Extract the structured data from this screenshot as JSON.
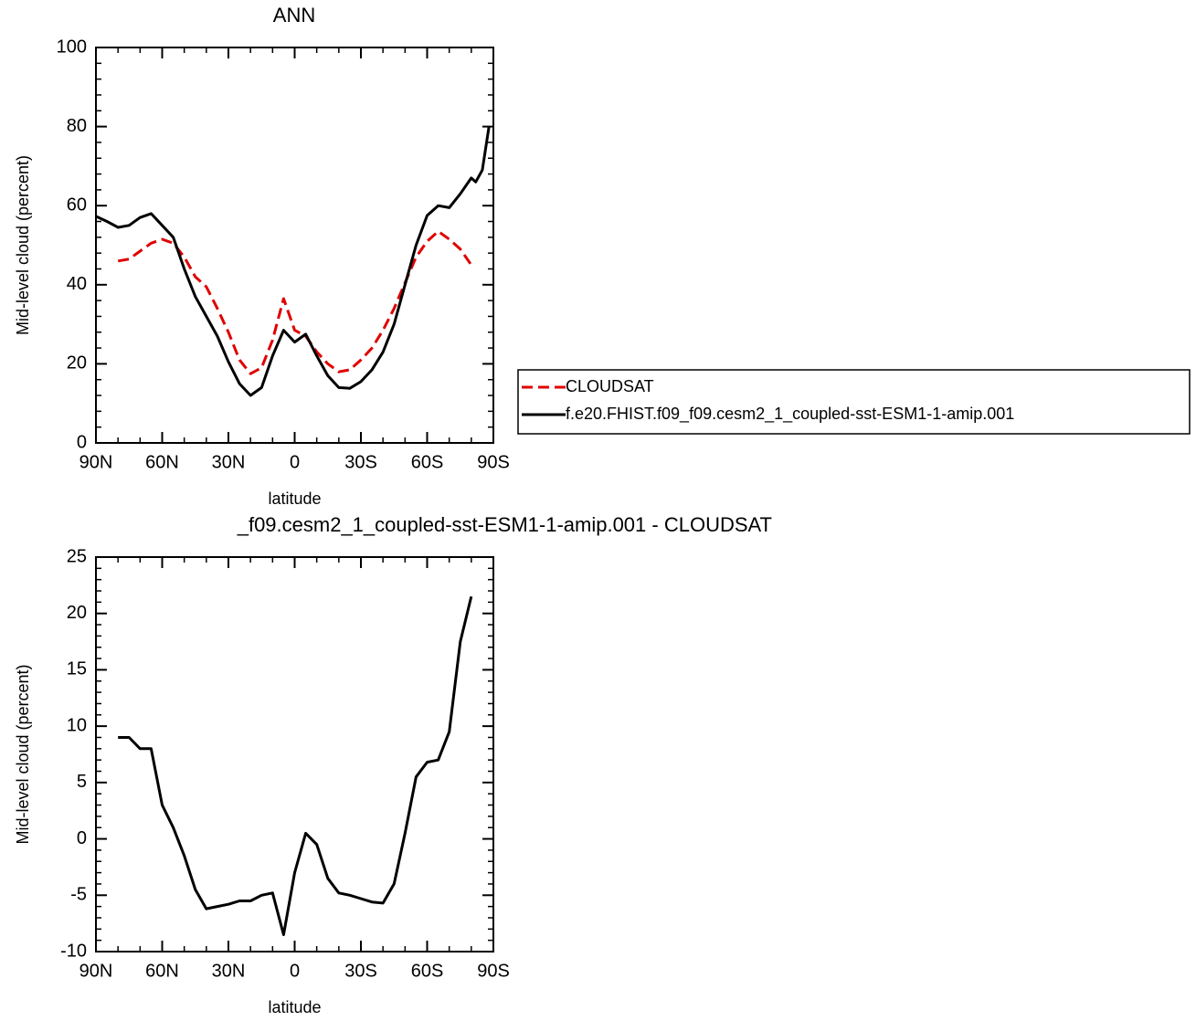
{
  "chart_data": [
    {
      "type": "line",
      "title": "ANN",
      "xlabel": "latitude",
      "ylabel": "Mid-level cloud (percent)",
      "x": [
        90,
        85,
        80,
        75,
        70,
        65,
        60,
        55,
        50,
        45,
        40,
        35,
        30,
        25,
        20,
        15,
        10,
        5,
        0,
        -5,
        -10,
        -15,
        -20,
        -25,
        -30,
        -35,
        -40,
        -45,
        -50,
        -55,
        -60,
        -65,
        -70,
        -75,
        -80,
        -82,
        -85,
        -88
      ],
      "series": [
        {
          "name": "CLOUDSAT",
          "color": "#e00000",
          "dashed": true,
          "values": [
            null,
            null,
            46,
            46.5,
            48.5,
            50.5,
            51.5,
            50.5,
            47,
            42,
            39.5,
            34,
            28,
            21,
            17.5,
            19,
            26,
            36.5,
            28.5,
            27,
            23,
            20,
            18,
            18.5,
            21,
            24,
            28.5,
            34,
            40.5,
            47,
            51,
            53.5,
            51.5,
            49,
            45,
            null,
            null,
            null
          ]
        },
        {
          "name": "f.e20.FHIST.f09_f09.cesm2_1_coupled-sst-ESM1-1-amip.001",
          "color": "#000000",
          "dashed": false,
          "values": [
            57.3,
            56,
            54.5,
            55,
            57,
            58,
            55,
            52,
            44,
            37,
            32,
            27,
            20.5,
            15,
            12,
            14,
            22,
            28.5,
            25.5,
            27.5,
            22,
            17,
            14,
            13.8,
            15.5,
            18.5,
            23,
            30,
            40,
            50,
            57.5,
            60,
            59.5,
            63,
            67,
            66,
            69,
            80
          ]
        }
      ],
      "xlim": [
        90,
        -90
      ],
      "ylim": [
        0,
        100
      ],
      "xticks": [
        {
          "value": 90,
          "label": "90N"
        },
        {
          "value": 60,
          "label": "60N"
        },
        {
          "value": 30,
          "label": "30N"
        },
        0,
        {
          "value": -30,
          "label": "30S"
        },
        {
          "value": -60,
          "label": "60S"
        },
        {
          "value": -90,
          "label": "90S"
        }
      ],
      "yticks": [
        0,
        20,
        40,
        60,
        80,
        100
      ],
      "legend": "right"
    },
    {
      "type": "line",
      "title": "_f09.cesm2_1_coupled-sst-ESM1-1-amip.001 - CLOUDSAT",
      "xlabel": "latitude",
      "ylabel": "Mid-level cloud (percent)",
      "x": [
        90,
        85,
        80,
        75,
        70,
        65,
        60,
        55,
        50,
        45,
        40,
        35,
        30,
        25,
        20,
        15,
        10,
        5,
        0,
        -5,
        -10,
        -15,
        -20,
        -25,
        -30,
        -35,
        -40,
        -45,
        -50,
        -55,
        -60,
        -65,
        -70,
        -75,
        -80,
        -82,
        -85,
        -88
      ],
      "color": "#000000",
      "values": [
        null,
        null,
        9,
        9,
        8,
        8,
        3,
        1,
        -1.5,
        -4.5,
        -6.2,
        -6,
        -5.8,
        -5.5,
        -5.5,
        -5,
        -4.8,
        -8.5,
        -3,
        0.5,
        -0.5,
        -3.5,
        -4.8,
        -5,
        -5.3,
        -5.6,
        -5.7,
        -4,
        0.5,
        5.5,
        6.8,
        7,
        9.5,
        17.5,
        21.5,
        null,
        null,
        null
      ],
      "xlim": [
        90,
        -90
      ],
      "ylim": [
        -10,
        25
      ],
      "xticks": [
        {
          "value": 90,
          "label": "90N"
        },
        {
          "value": 60,
          "label": "60N"
        },
        {
          "value": 30,
          "label": "30N"
        },
        0,
        {
          "value": -30,
          "label": "30S"
        },
        {
          "value": -60,
          "label": "60S"
        },
        {
          "value": -90,
          "label": "90S"
        }
      ],
      "yticks": [
        -10,
        -5,
        0,
        5,
        10,
        15,
        20,
        25
      ]
    }
  ]
}
